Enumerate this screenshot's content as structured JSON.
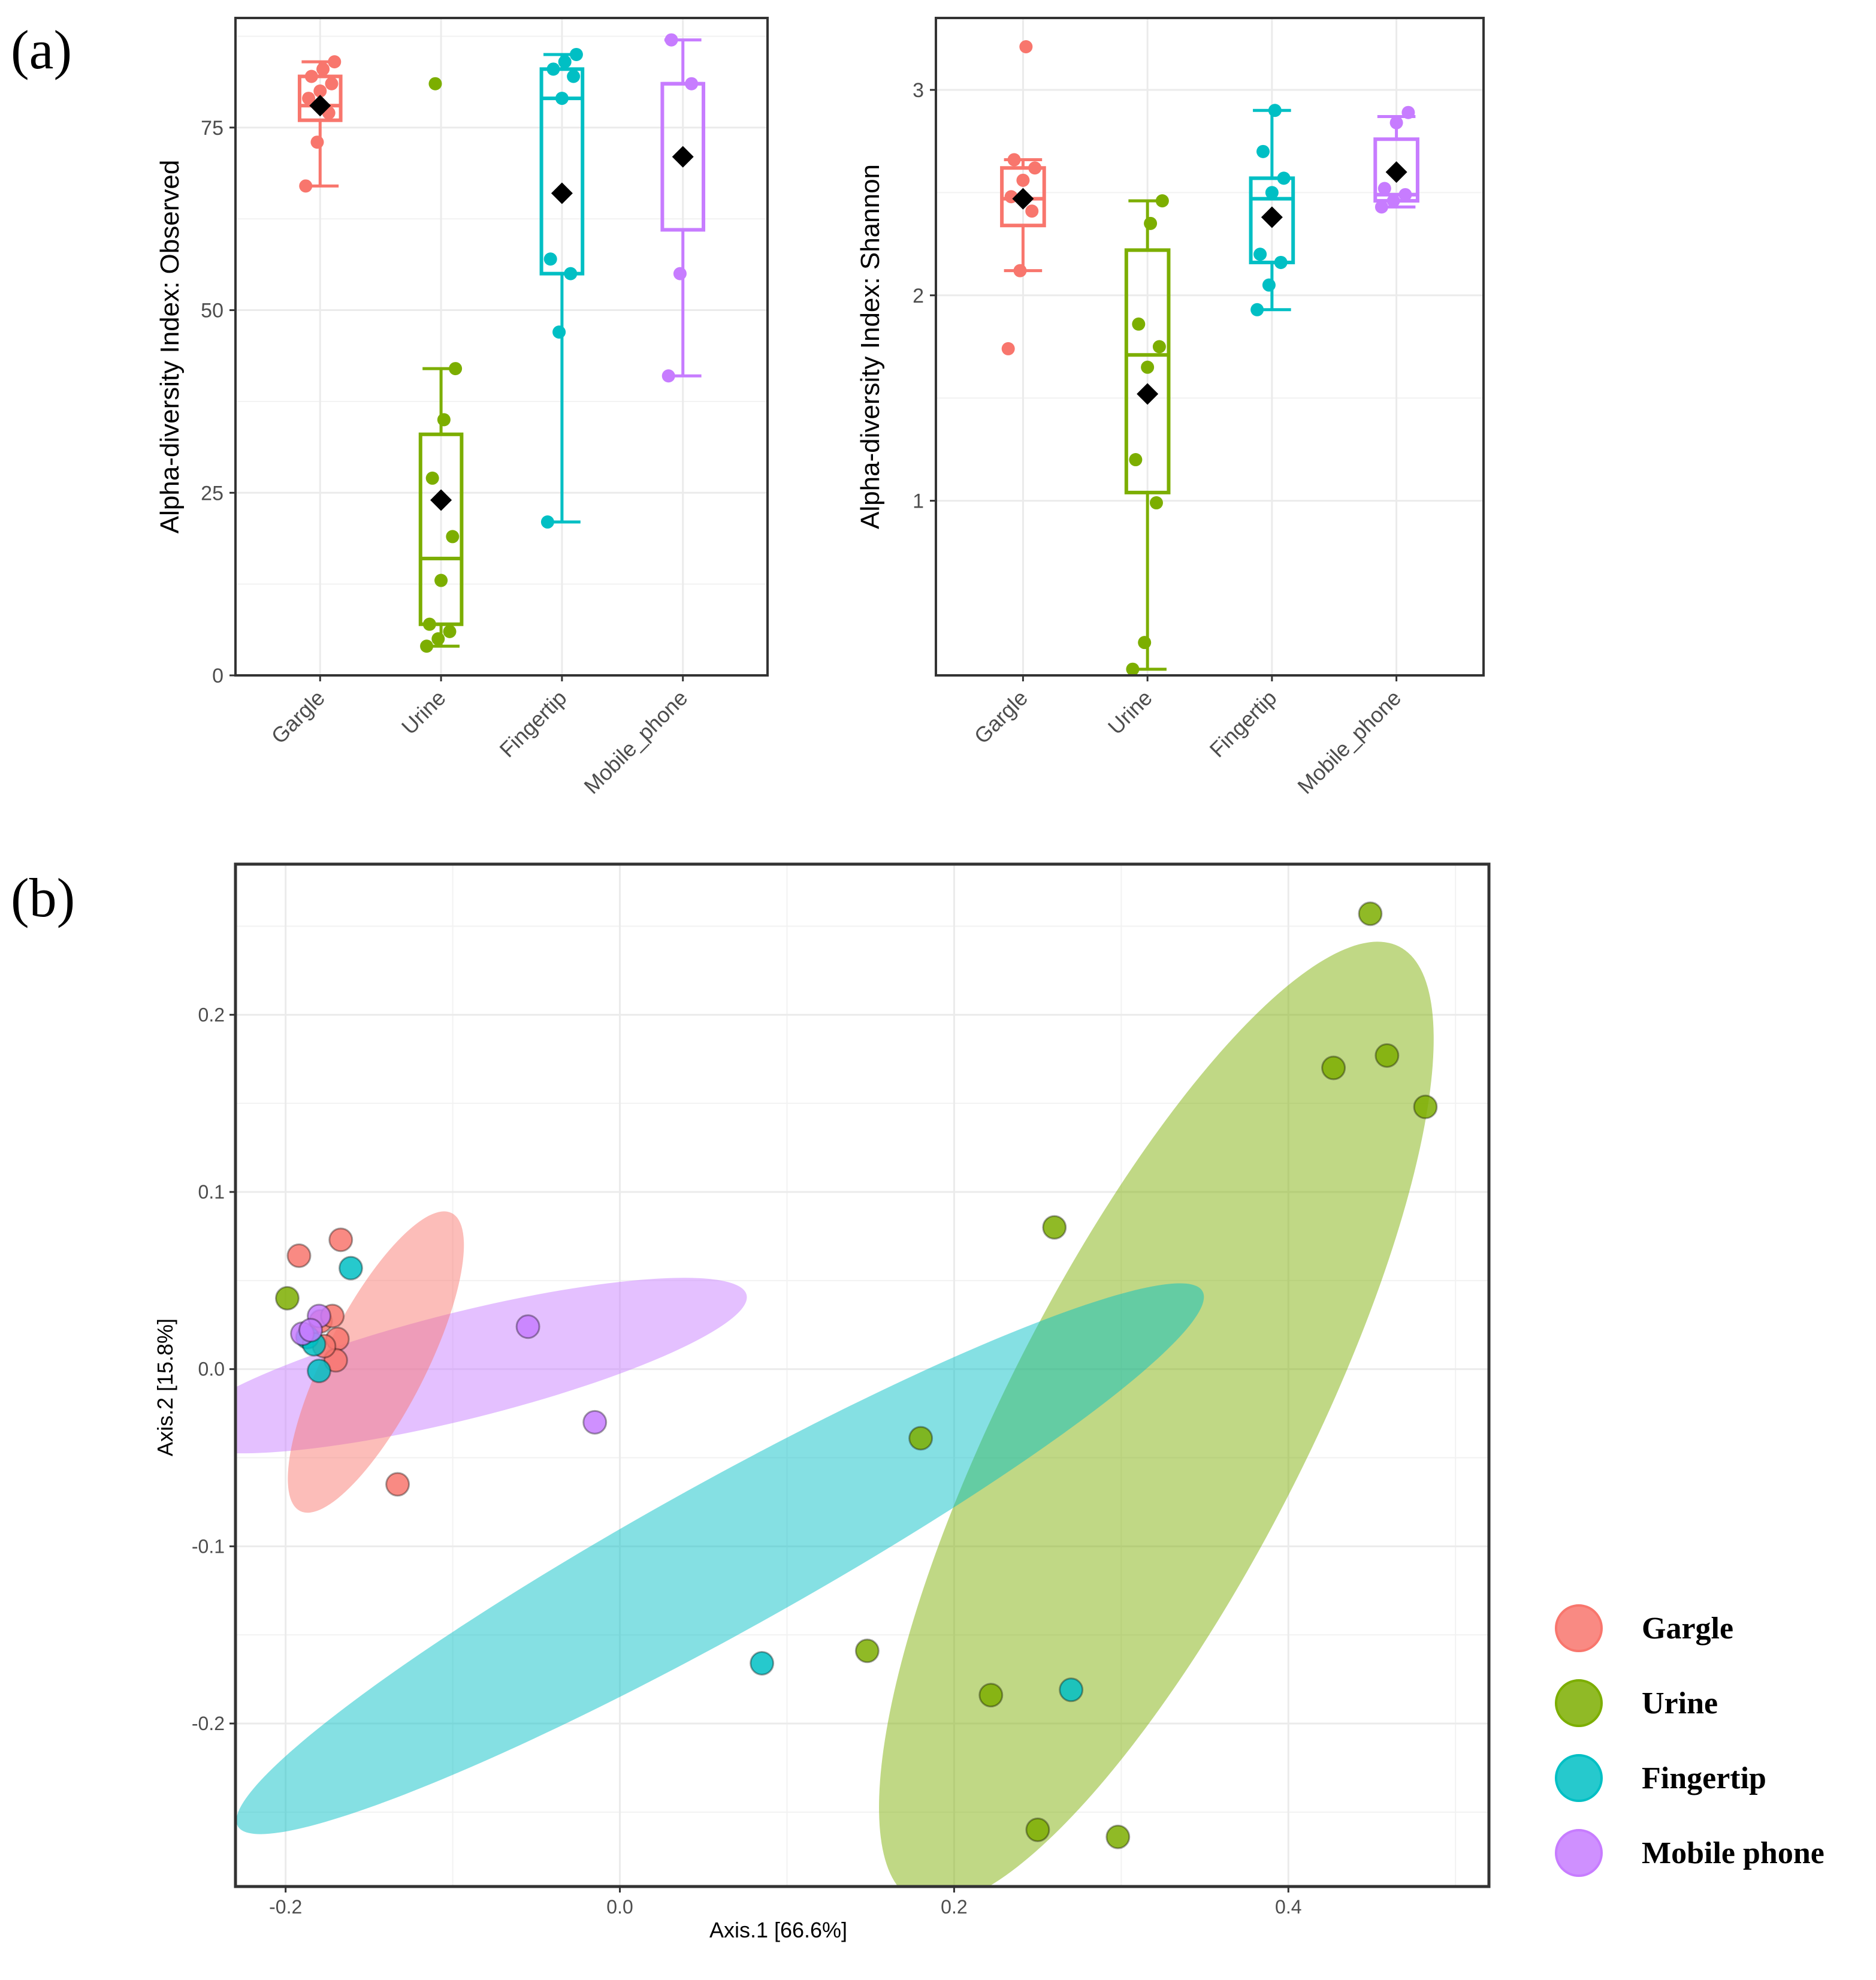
{
  "panel_labels": {
    "a": "(a)",
    "b": "(b)"
  },
  "colors": {
    "Gargle": "#F8766D",
    "Urine": "#7CAE00",
    "Fingertip": "#00BFC4",
    "Mobile_phone": "#C77CFF",
    "mean": "#000000",
    "frame": "#333333",
    "grid": "#EBEBEB"
  },
  "chart_data": [
    {
      "id": "observed",
      "type": "box",
      "ylabel": "Alpha-diversity Index: Observed",
      "ylim": [
        0,
        90
      ],
      "yticks": [
        0,
        25,
        50,
        75
      ],
      "categories": [
        "Gargle",
        "Urine",
        "Fingertip",
        "Mobile_phone"
      ],
      "groups": [
        {
          "name": "Gargle",
          "min": 67,
          "q1": 76,
          "median": 78,
          "q3": 82,
          "max": 84,
          "mean": 78,
          "points": [
            67,
            73,
            77,
            79,
            80,
            81,
            82,
            83,
            84
          ]
        },
        {
          "name": "Urine",
          "min": 4,
          "q1": 7,
          "median": 16,
          "q3": 33,
          "max": 42,
          "mean": 24,
          "outliers": [
            81
          ],
          "points": [
            4,
            5,
            6,
            7,
            13,
            19,
            27,
            35,
            42,
            81
          ]
        },
        {
          "name": "Fingertip",
          "min": 21,
          "q1": 55,
          "median": 79,
          "q3": 83,
          "max": 85,
          "mean": 66,
          "points": [
            21,
            47,
            55,
            57,
            79,
            82,
            83,
            84,
            85
          ]
        },
        {
          "name": "Mobile_phone",
          "min": 41,
          "q1": 61,
          "median": 81,
          "q3": 81,
          "max": 87,
          "mean": 71,
          "points": [
            41,
            55,
            81,
            87
          ]
        }
      ]
    },
    {
      "id": "shannon",
      "type": "box",
      "ylabel": "Alpha-diversity Index: Shannon",
      "ylim": [
        0.15,
        3.35
      ],
      "yticks": [
        1,
        2,
        3
      ],
      "categories": [
        "Gargle",
        "Urine",
        "Fingertip",
        "Mobile_phone"
      ],
      "groups": [
        {
          "name": "Gargle",
          "min": 2.12,
          "q1": 2.34,
          "median": 2.47,
          "q3": 2.62,
          "max": 2.66,
          "mean": 2.47,
          "outliers": [
            3.21,
            1.74
          ],
          "points": [
            1.74,
            2.12,
            2.41,
            2.48,
            2.56,
            2.62,
            2.66,
            3.21
          ]
        },
        {
          "name": "Urine",
          "min": 0.18,
          "q1": 1.04,
          "median": 1.71,
          "q3": 2.22,
          "max": 2.46,
          "mean": 1.52,
          "points": [
            0.18,
            0.31,
            0.99,
            1.2,
            1.65,
            1.75,
            1.86,
            2.35,
            2.46
          ]
        },
        {
          "name": "Fingertip",
          "min": 1.93,
          "q1": 2.16,
          "median": 2.47,
          "q3": 2.57,
          "max": 2.9,
          "mean": 2.38,
          "points": [
            1.93,
            2.05,
            2.16,
            2.2,
            2.5,
            2.57,
            2.7,
            2.9
          ]
        },
        {
          "name": "Mobile_phone",
          "min": 2.43,
          "q1": 2.46,
          "median": 2.49,
          "q3": 2.76,
          "max": 2.87,
          "mean": 2.6,
          "points": [
            2.43,
            2.46,
            2.49,
            2.52,
            2.84,
            2.89
          ]
        }
      ]
    },
    {
      "id": "pcoa",
      "type": "scatter",
      "xlabel": "Axis.1   [66.6%]",
      "ylabel": "Axis.2   [15.8%]",
      "xlim": [
        -0.23,
        0.52
      ],
      "ylim": [
        -0.292,
        0.285
      ],
      "xticks": [
        -0.2,
        0.0,
        0.2,
        0.4
      ],
      "yticks": [
        -0.2,
        -0.1,
        0.0,
        0.1,
        0.2
      ],
      "series": [
        {
          "name": "Gargle",
          "points": [
            [
              -0.167,
              0.073
            ],
            [
              -0.192,
              0.064
            ],
            [
              -0.179,
              0.027
            ],
            [
              -0.172,
              0.03
            ],
            [
              -0.169,
              0.017
            ],
            [
              -0.17,
              0.005
            ],
            [
              -0.177,
              0.013
            ],
            [
              -0.133,
              -0.065
            ]
          ],
          "ellipse": {
            "cx": -0.146,
            "cy": 0.004,
            "rx": 0.1,
            "ry": 0.03,
            "angle": -63
          }
        },
        {
          "name": "Urine",
          "points": [
            [
              0.449,
              0.257
            ],
            [
              0.427,
              0.17
            ],
            [
              0.459,
              0.177
            ],
            [
              0.482,
              0.148
            ],
            [
              0.26,
              0.08
            ],
            [
              0.18,
              -0.039
            ],
            [
              0.148,
              -0.159
            ],
            [
              0.222,
              -0.184
            ],
            [
              0.25,
              -0.26
            ],
            [
              0.298,
              -0.264
            ],
            [
              -0.199,
              0.04
            ]
          ],
          "ellipse": {
            "cx": 0.321,
            "cy": -0.0305,
            "rx": 0.32,
            "ry": 0.09,
            "angle": -63
          }
        },
        {
          "name": "Fingertip",
          "points": [
            [
              -0.161,
              0.057
            ],
            [
              -0.187,
              0.018
            ],
            [
              -0.183,
              0.014
            ],
            [
              -0.18,
              -0.001
            ],
            [
              0.085,
              -0.166
            ],
            [
              0.27,
              -0.181
            ]
          ],
          "ellipse": {
            "cx": 0.06,
            "cy": -0.107,
            "rx": 0.33,
            "ry": 0.045,
            "angle": -29
          }
        },
        {
          "name": "Mobile_phone",
          "points": [
            [
              -0.055,
              0.024
            ],
            [
              -0.015,
              -0.03
            ],
            [
              -0.18,
              0.03
            ],
            [
              -0.19,
              0.02
            ],
            [
              -0.185,
              0.022
            ]
          ],
          "ellipse": {
            "cx": -0.094,
            "cy": 0.002,
            "rx": 0.175,
            "ry": 0.032,
            "angle": -14
          }
        }
      ],
      "legend": {
        "position": "bottom-right",
        "entries": [
          "Gargle",
          "Urine",
          "Fingertip",
          "Mobile phone"
        ]
      }
    }
  ]
}
